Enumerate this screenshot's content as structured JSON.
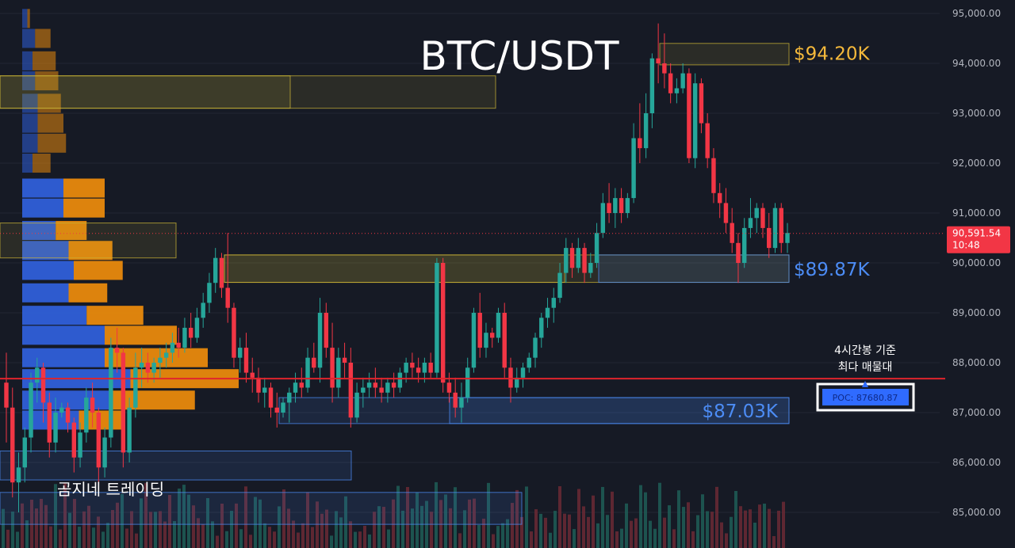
{
  "chart_data": {
    "type": "candlestick",
    "title": "BTC/USDT",
    "y_axis": {
      "ticks": [
        "95,000.00",
        "94,000.00",
        "93,000.00",
        "92,000.00",
        "91,000.00",
        "90,000.00",
        "89,000.00",
        "88,000.00",
        "87,000.00",
        "86,000.00",
        "85,000.00"
      ],
      "range": [
        84350,
        95350
      ],
      "grid": true
    },
    "current_price": {
      "label": "90,591.54",
      "timer": "10:48",
      "value": 90591.54,
      "color": "#f23645"
    },
    "levels": [
      {
        "label": "$94.20K",
        "value": 94200,
        "color": "#f5b93b"
      },
      {
        "label": "$89.87K",
        "value": 89870,
        "color": "#4c8cf5"
      },
      {
        "label": "$87.03K",
        "value": 87030,
        "color": "#4c8cf5"
      }
    ],
    "poc": {
      "label": "POC: 87680.87",
      "value": 87680.87,
      "note_line1": "4시간봉 기준",
      "note_line2": "최다 매물대",
      "color": "#e0242c"
    },
    "watermark": "곰지네 트레이딩",
    "colors": {
      "up": "#26a69a",
      "down": "#f23645",
      "profile_buy": "#2f5fd8",
      "profile_sell": "#e8890c",
      "background": "#161a25"
    },
    "candles": [
      [
        87600,
        88200,
        86400,
        87100
      ],
      [
        87100,
        87500,
        85300,
        85600
      ],
      [
        85600,
        86200,
        85000,
        85900
      ],
      [
        85900,
        86700,
        85600,
        86500
      ],
      [
        86500,
        87800,
        86200,
        87600
      ],
      [
        87600,
        88100,
        87200,
        87900
      ],
      [
        87900,
        88000,
        86800,
        87200
      ],
      [
        87200,
        87400,
        86100,
        86400
      ],
      [
        86400,
        87300,
        86200,
        87000
      ],
      [
        87000,
        87200,
        86900,
        87100
      ],
      [
        87100,
        87200,
        86600,
        86800
      ],
      [
        86800,
        86900,
        85800,
        86100
      ],
      [
        86100,
        86800,
        85900,
        86600
      ],
      [
        86600,
        87500,
        86400,
        87300
      ],
      [
        87300,
        87600,
        86700,
        87000
      ],
      [
        87000,
        87100,
        85600,
        85900
      ],
      [
        85900,
        86700,
        85700,
        86500
      ],
      [
        86500,
        88500,
        86300,
        88300
      ],
      [
        88300,
        88700,
        87800,
        88200
      ],
      [
        88200,
        88300,
        85900,
        86200
      ],
      [
        86200,
        87300,
        86000,
        87100
      ],
      [
        87100,
        88200,
        86900,
        87900
      ],
      [
        87900,
        88300,
        87500,
        88000
      ],
      [
        88000,
        88200,
        87600,
        87800
      ],
      [
        87800,
        88100,
        87600,
        88000
      ],
      [
        88000,
        88300,
        87700,
        88100
      ],
      [
        88100,
        88400,
        87900,
        88200
      ],
      [
        88200,
        88600,
        88000,
        88400
      ],
      [
        88400,
        88700,
        88100,
        88300
      ],
      [
        88300,
        88900,
        88200,
        88700
      ],
      [
        88700,
        89000,
        88300,
        88500
      ],
      [
        88500,
        89100,
        88400,
        88900
      ],
      [
        88900,
        89400,
        88700,
        89200
      ],
      [
        89200,
        89800,
        89000,
        89600
      ],
      [
        89600,
        90300,
        89400,
        90100
      ],
      [
        90100,
        90200,
        89300,
        89500
      ],
      [
        89500,
        90600,
        88800,
        89100
      ],
      [
        89100,
        89200,
        87900,
        88100
      ],
      [
        88100,
        88500,
        87800,
        88300
      ],
      [
        88300,
        88600,
        87600,
        87800
      ],
      [
        87800,
        88100,
        87400,
        87700
      ],
      [
        87700,
        87900,
        87200,
        87400
      ],
      [
        87400,
        87700,
        87100,
        87500
      ],
      [
        87500,
        87600,
        86900,
        87100
      ],
      [
        87100,
        87400,
        86700,
        87000
      ],
      [
        87000,
        87300,
        86900,
        87200
      ],
      [
        87200,
        87500,
        86800,
        87400
      ],
      [
        87400,
        87800,
        87200,
        87600
      ],
      [
        87600,
        87900,
        87300,
        87500
      ],
      [
        87500,
        88300,
        87400,
        88100
      ],
      [
        88100,
        88400,
        87800,
        87900
      ],
      [
        87900,
        89300,
        87600,
        89000
      ],
      [
        89000,
        89200,
        88100,
        88300
      ],
      [
        88300,
        88800,
        87200,
        87500
      ],
      [
        87500,
        88300,
        87300,
        88100
      ],
      [
        88100,
        88400,
        87700,
        88000
      ],
      [
        88000,
        88300,
        86700,
        86900
      ],
      [
        86900,
        87600,
        86800,
        87400
      ],
      [
        87400,
        87700,
        87100,
        87500
      ],
      [
        87500,
        87800,
        87300,
        87600
      ],
      [
        87600,
        87900,
        87300,
        87500
      ],
      [
        87500,
        87700,
        87200,
        87400
      ],
      [
        87400,
        87700,
        87200,
        87600
      ],
      [
        87600,
        87800,
        87300,
        87500
      ],
      [
        87500,
        87900,
        87400,
        87800
      ],
      [
        87800,
        88100,
        87600,
        88000
      ],
      [
        88000,
        88200,
        87700,
        87900
      ],
      [
        87900,
        88100,
        87600,
        87800
      ],
      [
        87800,
        88100,
        87600,
        88000
      ],
      [
        88000,
        88200,
        87700,
        87800
      ],
      [
        87800,
        90100,
        87700,
        90000
      ],
      [
        90000,
        90100,
        87400,
        87600
      ],
      [
        87600,
        87800,
        87200,
        87400
      ],
      [
        87400,
        87700,
        86900,
        87100
      ],
      [
        87100,
        87600,
        86800,
        87300
      ],
      [
        87300,
        88100,
        87200,
        87900
      ],
      [
        87900,
        89100,
        87800,
        89000
      ],
      [
        89000,
        89400,
        88100,
        88300
      ],
      [
        88300,
        88800,
        88100,
        88600
      ],
      [
        88600,
        88700,
        88300,
        88500
      ],
      [
        88500,
        89100,
        88400,
        89000
      ],
      [
        89000,
        89200,
        87700,
        87900
      ],
      [
        87900,
        88100,
        87200,
        87500
      ],
      [
        87500,
        87900,
        87400,
        87700
      ],
      [
        87700,
        88000,
        87500,
        87900
      ],
      [
        87900,
        88200,
        87800,
        88100
      ],
      [
        88100,
        88600,
        87900,
        88500
      ],
      [
        88500,
        89000,
        88300,
        88900
      ],
      [
        88900,
        89300,
        88700,
        89100
      ],
      [
        89100,
        89500,
        88800,
        89300
      ],
      [
        89300,
        90000,
        89200,
        89800
      ],
      [
        89800,
        90500,
        89600,
        90300
      ],
      [
        90300,
        90400,
        89700,
        89900
      ],
      [
        89900,
        90500,
        89800,
        90300
      ],
      [
        90300,
        90400,
        89600,
        89800
      ],
      [
        89800,
        90200,
        89700,
        90000
      ],
      [
        90000,
        90800,
        89900,
        90600
      ],
      [
        90600,
        91400,
        90500,
        91200
      ],
      [
        91200,
        91600,
        90800,
        91000
      ],
      [
        91000,
        91500,
        90700,
        91300
      ],
      [
        91300,
        91500,
        90800,
        91000
      ],
      [
        91000,
        91400,
        90900,
        91300
      ],
      [
        91300,
        92800,
        91200,
        92500
      ],
      [
        92500,
        93200,
        92000,
        92300
      ],
      [
        92300,
        93400,
        92100,
        93000
      ],
      [
        93000,
        94200,
        92700,
        94100
      ],
      [
        94100,
        94800,
        93600,
        94000
      ],
      [
        94000,
        94600,
        93500,
        93800
      ],
      [
        93800,
        94000,
        93200,
        93400
      ],
      [
        93400,
        93700,
        93200,
        93500
      ],
      [
        93500,
        94000,
        93400,
        93800
      ],
      [
        93800,
        93900,
        92000,
        92100
      ],
      [
        92100,
        93800,
        91900,
        93600
      ],
      [
        93600,
        93700,
        92600,
        92800
      ],
      [
        92800,
        93000,
        91900,
        92100
      ],
      [
        92100,
        92300,
        91200,
        91400
      ],
      [
        91400,
        91600,
        90900,
        91200
      ],
      [
        91200,
        91500,
        90600,
        90800
      ],
      [
        90800,
        91100,
        90200,
        90400
      ],
      [
        90400,
        90600,
        89600,
        90000
      ],
      [
        90000,
        90900,
        89900,
        90700
      ],
      [
        90700,
        91300,
        90500,
        90900
      ],
      [
        90900,
        91200,
        90600,
        91100
      ],
      [
        91100,
        91200,
        90500,
        90700
      ],
      [
        90700,
        91000,
        90100,
        90300
      ],
      [
        90300,
        91200,
        90200,
        91100
      ],
      [
        91100,
        91200,
        90200,
        90400
      ],
      [
        90400,
        90800,
        90200,
        90600
      ]
    ],
    "profile_rows": [
      [
        94900,
        0.02,
        0.01
      ],
      [
        94500,
        0.05,
        0.06
      ],
      [
        94050,
        0.04,
        0.09
      ],
      [
        93650,
        0.05,
        0.09
      ],
      [
        93200,
        0.06,
        0.09
      ],
      [
        92800,
        0.06,
        0.1
      ],
      [
        92400,
        0.06,
        0.11
      ],
      [
        92000,
        0.04,
        0.07
      ],
      [
        91500,
        0.16,
        0.16
      ],
      [
        91100,
        0.16,
        0.16
      ],
      [
        90650,
        0.13,
        0.12
      ],
      [
        90250,
        0.18,
        0.17
      ],
      [
        89850,
        0.2,
        0.19
      ],
      [
        89400,
        0.18,
        0.15
      ],
      [
        88950,
        0.25,
        0.22
      ],
      [
        88550,
        0.32,
        0.28
      ],
      [
        88100,
        0.32,
        0.4
      ],
      [
        87680,
        0.42,
        0.42
      ],
      [
        87250,
        0.35,
        0.32
      ],
      [
        86850,
        0.22,
        0.18
      ]
    ],
    "zones": [
      {
        "y1": 93750,
        "y2": 93100,
        "x1": 0,
        "x2": 625,
        "color": "#c8b236"
      },
      {
        "y1": 93750,
        "y2": 93100,
        "x1": 0,
        "x2": 366,
        "color": "#c8b236"
      },
      {
        "y1": 94400,
        "y2": 93970,
        "x1": 832,
        "x2": 995,
        "color": "#c8b236"
      },
      {
        "y1": 90160,
        "y2": 89610,
        "x1": 283,
        "x2": 995,
        "color": "#c8b236"
      },
      {
        "y1": 90160,
        "y2": 89610,
        "x1": 283,
        "x2": 712,
        "color": "#c8b236"
      },
      {
        "y1": 90800,
        "y2": 90100,
        "x1": 0,
        "x2": 222,
        "color": "#c8b236"
      },
      {
        "y1": 90160,
        "y2": 89610,
        "x1": 755,
        "x2": 995,
        "color": "#4c8cf5"
      },
      {
        "y1": 87300,
        "y2": 86780,
        "x1": 352,
        "x2": 995,
        "color": "#4c8cf5"
      },
      {
        "y1": 87300,
        "y2": 86780,
        "x1": 567,
        "x2": 995,
        "color": "#4c8cf5"
      },
      {
        "y1": 86230,
        "y2": 85650,
        "x1": 0,
        "x2": 443,
        "color": "#4c8cf5"
      },
      {
        "y1": 85400,
        "y2": 84760,
        "x1": 0,
        "x2": 658,
        "color": "#4c8cf5"
      }
    ]
  }
}
